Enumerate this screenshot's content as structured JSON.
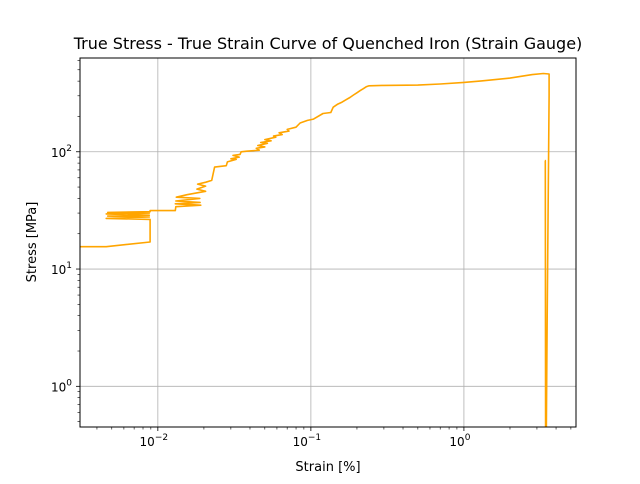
{
  "chart_data": {
    "type": "line",
    "title": "True Stress - True Strain Curve of Quenched Iron (Strain Gauge)",
    "xlabel": "Strain [%]",
    "ylabel": "Stress [MPa]",
    "xscale": "log",
    "yscale": "log",
    "xlim": [
      0.0031,
      5.4
    ],
    "ylim": [
      0.45,
      630
    ],
    "grid": true,
    "line_color": "#ffa500",
    "x_ticks": [
      {
        "value": 0.01,
        "base": "10",
        "exp": "−2"
      },
      {
        "value": 0.1,
        "base": "10",
        "exp": "−1"
      },
      {
        "value": 1,
        "base": "10",
        "exp": "0"
      }
    ],
    "y_ticks": [
      {
        "value": 1,
        "base": "10",
        "exp": "0"
      },
      {
        "value": 10,
        "base": "10",
        "exp": "1"
      },
      {
        "value": 100,
        "base": "10",
        "exp": "2"
      }
    ],
    "series": [
      {
        "x": [
          0.0031,
          0.0046,
          0.0089,
          0.0089,
          0.0046,
          0.0088,
          0.0047,
          0.0088,
          0.0046,
          0.0088,
          0.0047,
          0.0089,
          0.0089,
          0.013,
          0.0131,
          0.0191,
          0.013,
          0.0189,
          0.0131,
          0.0188,
          0.0132,
          0.0155,
          0.0205,
          0.018,
          0.0205,
          0.0182,
          0.0206,
          0.0225,
          0.0235,
          0.028,
          0.0285,
          0.0325,
          0.03,
          0.034,
          0.031,
          0.0345,
          0.035,
          0.038,
          0.046,
          0.044,
          0.05,
          0.045,
          0.052,
          0.047,
          0.055,
          0.05,
          0.059,
          0.057,
          0.065,
          0.062,
          0.072,
          0.07,
          0.08,
          0.085,
          0.095,
          0.104,
          0.12,
          0.135,
          0.14,
          0.15,
          0.16,
          0.17,
          0.18,
          0.19,
          0.2,
          0.21,
          0.22,
          0.23,
          0.24,
          0.3,
          0.5,
          0.7,
          1.0,
          1.3,
          2.0,
          2.8,
          3.3,
          3.6,
          3.6,
          3.5,
          3.45,
          3.42,
          3.4,
          3.38
        ],
        "y": [
          15.5,
          15.5,
          17.0,
          26.5,
          27.0,
          27.8,
          28.3,
          28.8,
          29.5,
          30.0,
          30.4,
          30.8,
          31.5,
          31.5,
          34.0,
          35.0,
          36.0,
          37.0,
          38.0,
          40.0,
          41.0,
          43.0,
          46.0,
          48.0,
          51.0,
          53.0,
          55.0,
          57.0,
          74.0,
          76.0,
          82.0,
          86.0,
          87.0,
          90.0,
          93.0,
          95.0,
          100.0,
          101.0,
          103.0,
          107.0,
          110.0,
          113.0,
          118.0,
          120.0,
          124.0,
          127.0,
          133.0,
          136.0,
          140.0,
          145.0,
          150.0,
          155.0,
          162.0,
          176.0,
          185.0,
          190.0,
          212.0,
          216.0,
          240.0,
          255.0,
          265.0,
          278.0,
          290.0,
          305.0,
          318.0,
          332.0,
          345.0,
          358.0,
          365.0,
          368.0,
          370.0,
          378.0,
          390.0,
          402.0,
          425.0,
          455.0,
          465.0,
          460.0,
          300.0,
          4.0,
          0.3,
          0.3,
          84.0,
          84.0
        ]
      }
    ]
  }
}
